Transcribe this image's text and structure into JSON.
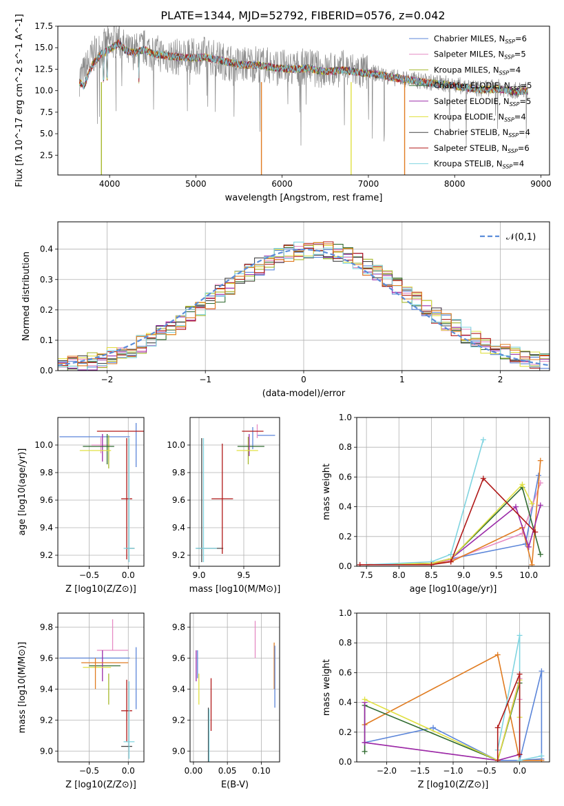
{
  "figure": {
    "title": "PLATE=1344, MJD=52792, FIBERID=0576, z=0.042"
  },
  "models": [
    {
      "name": "Chabrier MILES, N_SSP=6",
      "imf": "Chabrier",
      "lib": "MILES",
      "nssp": "6",
      "color": "#5b85d9"
    },
    {
      "name": "Salpeter MILES, N_SSP=5",
      "imf": "Salpeter",
      "lib": "MILES",
      "nssp": "5",
      "color": "#e68ac3"
    },
    {
      "name": "Kroupa MILES, N_SSP=4",
      "imf": "Kroupa",
      "lib": "MILES",
      "nssp": "4",
      "color": "#a6b82b"
    },
    {
      "name": "Chabrier ELODIE, N_SSP=5",
      "imf": "Chabrier",
      "lib": "ELODIE",
      "nssp": "5",
      "color": "#2f6a2f"
    },
    {
      "name": "Salpeter ELODIE, N_SSP=5",
      "imf": "Salpeter",
      "lib": "ELODIE",
      "nssp": "5",
      "color": "#9a2aa8"
    },
    {
      "name": "Kroupa ELODIE, N_SSP=4",
      "imf": "Kroupa",
      "lib": "ELODIE",
      "nssp": "4",
      "color": "#e0e040"
    },
    {
      "name": "Chabrier STELIB, N_SSP=4",
      "imf": "Chabrier",
      "lib": "STELIB",
      "nssp": "4",
      "color": "#444444"
    },
    {
      "name": "Salpeter STELIB, N_SSP=6",
      "imf": "Salpeter",
      "lib": "STELIB",
      "nssp": "6",
      "color": "#b01818"
    },
    {
      "name": "Kroupa STELIB, N_SSP=4",
      "imf": "Kroupa",
      "lib": "STELIB",
      "nssp": "4",
      "color": "#7fd4e0"
    }
  ],
  "chart_data": [
    {
      "id": "spectrum",
      "type": "line",
      "title": "PLATE=1344, MJD=52792, FIBERID=0576, z=0.042",
      "xlabel": "wavelength [Angstrom, rest frame]",
      "ylabel": "Flux [fλ 10^-17 erg cm^-2 s^-1 A^-1]",
      "xlim": [
        3400,
        9100
      ],
      "ylim": [
        0.2,
        17.5
      ],
      "xticks": [
        4000,
        5000,
        6000,
        7000,
        8000,
        9000
      ],
      "yticks": [
        2.5,
        5.0,
        7.5,
        10.0,
        12.5,
        15.0,
        17.5
      ],
      "ytick_labels": [
        "2.5",
        "5.0",
        "7.5",
        "10.0",
        "12.5",
        "15.0",
        "17.5"
      ],
      "data_color": "#888888",
      "data_x": [
        3650,
        3700,
        3800,
        3900,
        4000,
        4100,
        4200,
        4300,
        4400,
        4500,
        4700,
        4900,
        5100,
        5300,
        5500,
        5700,
        5900,
        6100,
        6300,
        6500,
        6700,
        6900,
        7100,
        7300,
        7500,
        7700,
        7900,
        8100,
        8300,
        8500,
        8700,
        8850
      ],
      "data_y": [
        11.5,
        12.0,
        14.0,
        14.8,
        15.5,
        16.0,
        14.5,
        14.6,
        15.0,
        14.5,
        14.0,
        13.8,
        14.2,
        13.5,
        13.0,
        13.2,
        12.8,
        12.5,
        12.8,
        12.3,
        12.6,
        12.2,
        12.0,
        11.5,
        11.3,
        11.0,
        10.8,
        10.5,
        10.2,
        10.4,
        10.0,
        10.2
      ],
      "model_x": [
        3650,
        3700,
        3800,
        3900,
        4000,
        4100,
        4200,
        4300,
        4400,
        4500,
        4700,
        4900,
        5100,
        5300,
        5500,
        5700,
        5900,
        6100,
        6300,
        6500,
        6700,
        6900,
        7100,
        7300,
        7500,
        7700,
        7900,
        8100,
        8300,
        8500,
        8700,
        8850
      ],
      "model_y": [
        11.0,
        10.5,
        13.0,
        14.2,
        14.8,
        15.5,
        14.6,
        14.4,
        14.8,
        14.3,
        14.0,
        13.8,
        13.9,
        13.5,
        13.0,
        13.0,
        12.7,
        12.5,
        12.6,
        12.2,
        12.4,
        12.1,
        11.9,
        11.5,
        11.2,
        10.9,
        10.7,
        10.4,
        10.1,
        10.2,
        9.9,
        10.0
      ]
    },
    {
      "id": "residuals",
      "type": "histogram",
      "xlabel": "(data-model)/error",
      "ylabel": "Normed distribution",
      "xlim": [
        -2.5,
        2.5
      ],
      "ylim": [
        0,
        0.49
      ],
      "xticks": [
        -2,
        -1,
        0,
        1,
        2
      ],
      "xtick_labels": [
        "−2",
        "−1",
        "0",
        "1",
        "2"
      ],
      "yticks": [
        0.0,
        0.1,
        0.2,
        0.3,
        0.4
      ],
      "ytick_labels": [
        "0.0",
        "0.1",
        "0.2",
        "0.3",
        "0.4"
      ],
      "bin_start": -2.5,
      "bin_width": 0.1,
      "legend": "𝒩(0,1)"
    },
    {
      "id": "age_vs_Z",
      "type": "errorbar",
      "xlabel": "Z [log10(Z/Z⊙)]",
      "ylabel": "age  [log10(age/yr)]",
      "xlim": [
        -0.9,
        0.2
      ],
      "ylim": [
        9.12,
        10.2
      ],
      "xticks": [
        -0.5,
        0.0
      ],
      "xtick_labels": [
        "−0.5",
        "0.0"
      ],
      "yticks": [
        9.2,
        9.4,
        9.6,
        9.8,
        10.0
      ],
      "ytick_labels": [
        "9.2",
        "9.4",
        "9.6",
        "9.8",
        "10.0"
      ],
      "points": [
        {
          "m": 0,
          "x": -0.43,
          "y": 10.06,
          "xerr": 0.45,
          "yerr": 0.0
        },
        {
          "m": 0,
          "x": 0.1,
          "y": 10.0,
          "xerr": 0.0,
          "yerr": 0.16
        },
        {
          "m": 1,
          "x": -0.35,
          "y": 10.0,
          "xerr": 0.12,
          "yerr": 0.06
        },
        {
          "m": 2,
          "x": -0.25,
          "y": 9.95,
          "xerr": 0.0,
          "yerr": 0.12
        },
        {
          "m": 3,
          "x": -0.27,
          "y": 9.97,
          "xerr": 0.0,
          "yerr": 0.11
        },
        {
          "m": 4,
          "x": -0.33,
          "y": 9.98,
          "xerr": 0.0,
          "yerr": 0.1
        },
        {
          "m": 5,
          "x": -0.42,
          "y": 9.96,
          "xerr": 0.2,
          "yerr": 0.0
        },
        {
          "m": 6,
          "x": 0.03,
          "y": 9.25,
          "xerr": 0.05,
          "yerr": 0.0
        },
        {
          "m": 7,
          "x": -0.02,
          "y": 9.61,
          "xerr": 0.07,
          "yerr": 0.44
        },
        {
          "m": 7,
          "x": -0.05,
          "y": 10.1,
          "xerr": 0.35,
          "yerr": 0.0
        },
        {
          "m": 8,
          "x": 0.01,
          "y": 9.25,
          "xerr": 0.07,
          "yerr": 0.0
        },
        {
          "m": 8,
          "x": 0.01,
          "y": 9.6,
          "xerr": 0.0,
          "yerr": 0.45
        },
        {
          "m": 3,
          "x": -0.38,
          "y": 9.99,
          "xerr": 0.2,
          "yerr": 0.0
        }
      ]
    },
    {
      "id": "age_vs_mass",
      "type": "errorbar",
      "xlabel": "mass [log10(M/M⊙)]",
      "ylabel": "",
      "xlim": [
        8.9,
        9.9
      ],
      "ylim": [
        9.12,
        10.2
      ],
      "xticks": [
        9.0,
        9.5
      ],
      "xtick_labels": [
        "9.0",
        "9.5"
      ],
      "yticks": [
        9.2,
        9.4,
        9.6,
        9.8,
        10.0
      ],
      "ytick_labels": [
        "9.2",
        "9.4",
        "9.6",
        "9.8",
        "10.0"
      ],
      "points": [
        {
          "m": 0,
          "x": 9.75,
          "y": 10.07,
          "xerr": 0.1,
          "yerr": 0.0
        },
        {
          "m": 0,
          "x": 9.6,
          "y": 10.05,
          "xerr": 0.0,
          "yerr": 0.08
        },
        {
          "m": 1,
          "x": 9.65,
          "y": 10.1,
          "xerr": 0.0,
          "yerr": 0.05
        },
        {
          "m": 2,
          "x": 9.55,
          "y": 9.96,
          "xerr": 0.0,
          "yerr": 0.1
        },
        {
          "m": 3,
          "x": 9.58,
          "y": 9.99,
          "xerr": 0.15,
          "yerr": 0.0
        },
        {
          "m": 4,
          "x": 9.56,
          "y": 10.0,
          "xerr": 0.0,
          "yerr": 0.08
        },
        {
          "m": 5,
          "x": 9.54,
          "y": 9.96,
          "xerr": 0.12,
          "yerr": 0.0
        },
        {
          "m": 6,
          "x": 9.03,
          "y": 9.6,
          "xerr": 0.0,
          "yerr": 0.45
        },
        {
          "m": 6,
          "x": 9.12,
          "y": 9.25,
          "xerr": 0.15,
          "yerr": 0.0
        },
        {
          "m": 7,
          "x": 9.26,
          "y": 9.61,
          "xerr": 0.12,
          "yerr": 0.4
        },
        {
          "m": 8,
          "x": 9.05,
          "y": 9.6,
          "xerr": 0.0,
          "yerr": 0.45
        },
        {
          "m": 8,
          "x": 9.08,
          "y": 9.25,
          "xerr": 0.12,
          "yerr": 0.0
        },
        {
          "m": 7,
          "x": 9.6,
          "y": 10.1,
          "xerr": 0.12,
          "yerr": 0.0
        }
      ]
    },
    {
      "id": "massweight_vs_age",
      "type": "line",
      "xlabel": "age  [log10(age/yr)]",
      "ylabel": "mass weight",
      "xlim": [
        7.35,
        10.32
      ],
      "ylim": [
        0,
        1.0
      ],
      "xticks": [
        7.5,
        8.0,
        8.5,
        9.0,
        9.5,
        10.0
      ],
      "xtick_labels": [
        "7.5",
        "8.0",
        "8.5",
        "9.0",
        "9.5",
        "10.0"
      ],
      "yticks": [
        0.0,
        0.2,
        0.4,
        0.6,
        0.8,
        1.0
      ],
      "ytick_labels": [
        "0.0",
        "0.2",
        "0.4",
        "0.6",
        "0.8",
        "1.0"
      ],
      "series": [
        {
          "m": 0,
          "x": [
            7.5,
            8.5,
            8.8,
            9.95,
            10.15
          ],
          "y": [
            0.01,
            0.02,
            0.05,
            0.15,
            0.61
          ]
        },
        {
          "m": 1,
          "x": [
            7.5,
            8.5,
            8.8,
            9.9,
            10.18
          ],
          "y": [
            0.01,
            0.02,
            0.04,
            0.22,
            0.56
          ]
        },
        {
          "m": 9,
          "x": [
            7.5,
            8.5,
            8.8,
            9.9,
            10.05,
            10.18
          ],
          "y": [
            0.01,
            0.02,
            0.03,
            0.26,
            0.01,
            0.71
          ]
        },
        {
          "m": 3,
          "x": [
            7.5,
            8.5,
            8.8,
            9.9,
            10.18
          ],
          "y": [
            0.01,
            0.02,
            0.05,
            0.53,
            0.08
          ]
        },
        {
          "m": 4,
          "x": [
            7.5,
            8.5,
            8.8,
            9.8,
            10.0,
            10.18
          ],
          "y": [
            0.01,
            0.02,
            0.05,
            0.4,
            0.13,
            0.41
          ]
        },
        {
          "m": 5,
          "x": [
            7.5,
            8.5,
            8.8,
            9.9,
            10.05
          ],
          "y": [
            0.01,
            0.02,
            0.05,
            0.55,
            0.42
          ]
        },
        {
          "m": 8,
          "x": [
            7.5,
            8.5,
            8.8,
            9.3
          ],
          "y": [
            0.01,
            0.03,
            0.08,
            0.85
          ]
        },
        {
          "m": 7,
          "x": [
            7.4,
            8.5,
            8.8,
            9.3,
            10.1
          ],
          "y": [
            0.01,
            0.01,
            0.03,
            0.59,
            0.23
          ]
        }
      ]
    },
    {
      "id": "mass_vs_Z",
      "type": "errorbar",
      "xlabel": "Z [log10(Z/Z⊙)]",
      "ylabel": "mass [log10(M/M⊙)]",
      "xlim": [
        -0.9,
        0.2
      ],
      "ylim": [
        8.93,
        9.89
      ],
      "xticks": [
        -0.5,
        0.0
      ],
      "xtick_labels": [
        "−0.5",
        "0.0"
      ],
      "yticks": [
        9.0,
        9.2,
        9.4,
        9.6,
        9.8
      ],
      "ytick_labels": [
        "9.0",
        "9.2",
        "9.4",
        "9.6",
        "9.8"
      ],
      "points": [
        {
          "m": 0,
          "x": -0.43,
          "y": 9.6,
          "xerr": 0.45,
          "yerr": 0.0
        },
        {
          "m": 0,
          "x": 0.1,
          "y": 9.47,
          "xerr": 0.0,
          "yerr": 0.2
        },
        {
          "m": 1,
          "x": -0.2,
          "y": 9.65,
          "xerr": 0.2,
          "yerr": 0.0
        },
        {
          "m": 1,
          "x": -0.2,
          "y": 9.75,
          "xerr": 0.0,
          "yerr": 0.1
        },
        {
          "m": 2,
          "x": -0.25,
          "y": 9.4,
          "xerr": 0.0,
          "yerr": 0.1
        },
        {
          "m": 3,
          "x": -0.3,
          "y": 9.55,
          "xerr": 0.2,
          "yerr": 0.0
        },
        {
          "m": 4,
          "x": -0.33,
          "y": 9.55,
          "xerr": 0.0,
          "yerr": 0.1
        },
        {
          "m": 5,
          "x": -0.4,
          "y": 9.54,
          "xerr": 0.18,
          "yerr": 0.0
        },
        {
          "m": 6,
          "x": -0.02,
          "y": 9.03,
          "xerr": 0.07,
          "yerr": 0.0
        },
        {
          "m": 7,
          "x": -0.02,
          "y": 9.26,
          "xerr": 0.07,
          "yerr": 0.2
        },
        {
          "m": 8,
          "x": 0.01,
          "y": 9.06,
          "xerr": 0.07,
          "yerr": 0.0
        },
        {
          "m": 8,
          "x": 0.01,
          "y": 9.2,
          "xerr": 0.0,
          "yerr": 0.25
        },
        {
          "m": 9,
          "x": -0.3,
          "y": 9.57,
          "xerr": 0.3,
          "yerr": 0.0
        },
        {
          "m": 9,
          "x": -0.42,
          "y": 9.5,
          "xerr": 0.0,
          "yerr": 0.1
        }
      ]
    },
    {
      "id": "mass_vs_ebv",
      "type": "errorbar",
      "xlabel": "E(B-V)",
      "ylabel": "",
      "xlim": [
        -0.005,
        0.127
      ],
      "ylim": [
        8.93,
        9.89
      ],
      "xticks": [
        0.0,
        0.05,
        0.1
      ],
      "xtick_labels": [
        "0.00",
        "0.05",
        "0.10"
      ],
      "yticks": [
        9.0,
        9.2,
        9.4,
        9.6,
        9.8
      ],
      "ytick_labels": [
        "9.0",
        "9.2",
        "9.4",
        "9.6",
        "9.8"
      ],
      "points": [
        {
          "m": 4,
          "x": 0.004,
          "y": 9.55,
          "xerr": 0.0,
          "yerr": 0.1
        },
        {
          "m": 0,
          "x": 0.006,
          "y": 9.56,
          "xerr": 0.0,
          "yerr": 0.09
        },
        {
          "m": 5,
          "x": 0.008,
          "y": 9.4,
          "xerr": 0.0,
          "yerr": 0.1
        },
        {
          "m": 6,
          "x": 0.022,
          "y": 9.1,
          "xerr": 0.0,
          "yerr": 0.18
        },
        {
          "m": 8,
          "x": 0.023,
          "y": 9.07,
          "xerr": 0.0,
          "yerr": 0.2
        },
        {
          "m": 7,
          "x": 0.026,
          "y": 9.3,
          "xerr": 0.0,
          "yerr": 0.17
        },
        {
          "m": 1,
          "x": 0.091,
          "y": 9.72,
          "xerr": 0.0,
          "yerr": 0.12
        },
        {
          "m": 9,
          "x": 0.119,
          "y": 9.55,
          "xerr": 0.0,
          "yerr": 0.15
        },
        {
          "m": 0,
          "x": 0.12,
          "y": 9.48,
          "xerr": 0.0,
          "yerr": 0.2
        }
      ]
    },
    {
      "id": "massweight_vs_Z",
      "type": "line",
      "xlabel": "Z [log10(Z/Z⊙)]",
      "ylabel": "mass weight",
      "xlim": [
        -2.45,
        0.45
      ],
      "ylim": [
        0,
        1.0
      ],
      "xticks": [
        -2.0,
        -1.5,
        -1.0,
        -0.5,
        0.0
      ],
      "xtick_labels": [
        "−2.0",
        "−1.5",
        "−1.0",
        "−0.5",
        "0.0"
      ],
      "yticks": [
        0.0,
        0.2,
        0.4,
        0.6,
        0.8,
        1.0
      ],
      "ytick_labels": [
        "0.0",
        "0.2",
        "0.4",
        "0.6",
        "0.8",
        "1.0"
      ],
      "series": [
        {
          "m": 0,
          "x": [
            -2.33,
            -1.3,
            -0.33,
            0.0,
            0.33,
            0.33,
            0.0
          ],
          "y": [
            0.13,
            0.23,
            0.01,
            0.01,
            0.61,
            0.02,
            0.01
          ]
        },
        {
          "m": 1,
          "x": [
            -2.33,
            -0.33,
            0.0,
            0.0
          ],
          "y": [
            0.13,
            0.01,
            0.56,
            0.42
          ]
        },
        {
          "m": 9,
          "x": [
            -2.33,
            -0.33,
            0.0,
            0.33
          ],
          "y": [
            0.25,
            0.72,
            0.01,
            0.01
          ]
        },
        {
          "m": 3,
          "x": [
            -2.33,
            -2.33,
            -0.33,
            0.0
          ],
          "y": [
            0.07,
            0.38,
            0.01,
            0.53
          ]
        },
        {
          "m": 4,
          "x": [
            -2.33,
            -2.33,
            -0.33,
            0.0
          ],
          "y": [
            0.4,
            0.13,
            0.01,
            0.05
          ]
        },
        {
          "m": 5,
          "x": [
            -2.33,
            -0.33,
            0.0,
            0.0
          ],
          "y": [
            0.42,
            0.01,
            0.55,
            0.3
          ]
        },
        {
          "m": 8,
          "x": [
            -0.33,
            0.0,
            0.0,
            0.33
          ],
          "y": [
            0.08,
            0.85,
            0.01,
            0.04
          ]
        },
        {
          "m": 7,
          "x": [
            -0.33,
            -0.33,
            0.0,
            0.0
          ],
          "y": [
            0.01,
            0.23,
            0.59,
            0.05
          ]
        }
      ]
    }
  ],
  "extra_colors": {
    "orange": "#e07b20",
    "grid": "#b0b0b0",
    "gauss": "#5b8dd9"
  }
}
